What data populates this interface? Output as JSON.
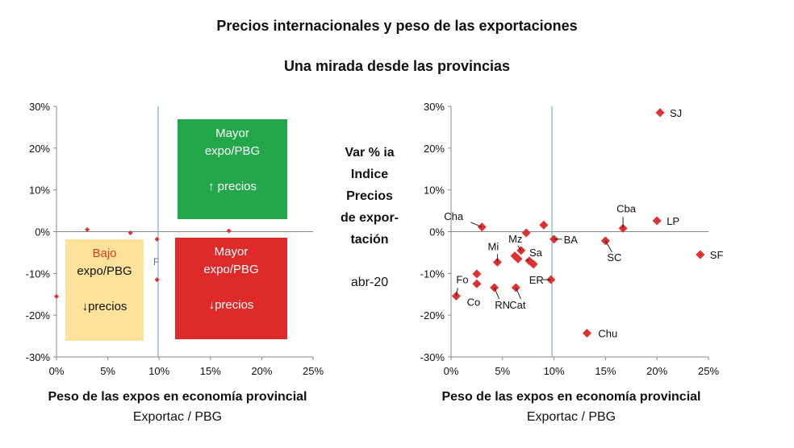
{
  "title": "Precios internacionales y peso de las exportaciones",
  "subtitle": "Una mirada desde las provincias",
  "center_label": {
    "lines": [
      "Var % ia",
      "Indice",
      "Precios",
      "de expor-",
      "tación"
    ],
    "date": "abr-20"
  },
  "colors": {
    "marker": "#e03030",
    "vline": "#5b9bd5",
    "green_box": "#22a84a",
    "red_box": "#e02a2a",
    "yellow_box": "#fde39a",
    "bajo_text": "#e03a1a"
  },
  "chart_data": [
    {
      "type": "scatter",
      "title": "",
      "xlabel": "Peso de las expos en economía provincial",
      "xlabel_sub": "Exportac / PBG",
      "xlim": [
        0,
        25
      ],
      "ylim": [
        -30,
        30
      ],
      "xticks": [
        "0%",
        "5%",
        "10%",
        "15%",
        "20%",
        "25%"
      ],
      "yticks": [
        "30%",
        "20%",
        "10%",
        "0%",
        "-10%",
        "-20%",
        "-30%"
      ],
      "vline_x": 9.9,
      "quadrants": [
        {
          "key": "top_right",
          "lines": [
            "Mayor",
            "expo/PBG",
            "",
            "↑ precios"
          ]
        },
        {
          "key": "bottom_right",
          "lines": [
            "Mayor",
            "expo/PBG",
            "",
            "↓precios"
          ]
        },
        {
          "key": "bottom_left",
          "lines": [
            "Bajo",
            "expo/PBG",
            "",
            "↓precios"
          ]
        }
      ],
      "hidden_label": "F",
      "points": [
        {
          "x": 0.0,
          "y": -15.5
        },
        {
          "x": 3.0,
          "y": 0.5
        },
        {
          "x": 7.2,
          "y": -0.3
        },
        {
          "x": 9.8,
          "y": -11.5
        },
        {
          "x": 16.8,
          "y": 0.2
        },
        {
          "x": 9.8,
          "y": -1.8
        }
      ]
    },
    {
      "type": "scatter",
      "title": "",
      "xlabel": "Peso de las expos en economía provincial",
      "xlabel_sub": "Exportac / PBG",
      "xlim": [
        0,
        25
      ],
      "ylim": [
        -30,
        30
      ],
      "xticks": [
        "0%",
        "5%",
        "10%",
        "15%",
        "20%",
        "25%"
      ],
      "yticks": [
        "30%",
        "20%",
        "10%",
        "0%",
        "-10%",
        "-20%",
        "-30%"
      ],
      "vline_x": 9.8,
      "points": [
        {
          "label": "SJ",
          "x": 20.3,
          "y": 28.5
        },
        {
          "label": "LP",
          "x": 20.0,
          "y": 2.6
        },
        {
          "label": "SF",
          "x": 24.2,
          "y": -5.5
        },
        {
          "label": "Cba",
          "x": 16.7,
          "y": 0.8
        },
        {
          "label": "SC",
          "x": 15.0,
          "y": -2.2
        },
        {
          "label": "Chu",
          "x": 13.2,
          "y": -24.3
        },
        {
          "label": "BA",
          "x": 10.0,
          "y": -1.8
        },
        {
          "label": "",
          "x": 9.0,
          "y": 1.6
        },
        {
          "label": "",
          "x": 7.3,
          "y": -0.3
        },
        {
          "label": "Cha",
          "x": 3.0,
          "y": 1.1
        },
        {
          "label": "Mz",
          "x": 6.8,
          "y": -4.5
        },
        {
          "label": "Mi",
          "x": 4.5,
          "y": -7.3
        },
        {
          "label": "",
          "x": 6.2,
          "y": -5.8
        },
        {
          "label": "",
          "x": 6.5,
          "y": -6.5
        },
        {
          "label": "Sa",
          "x": 7.6,
          "y": -7.0
        },
        {
          "label": "",
          "x": 8.0,
          "y": -7.8
        },
        {
          "label": "ER",
          "x": 9.7,
          "y": -11.5
        },
        {
          "label": "Cat",
          "x": 6.3,
          "y": -13.4
        },
        {
          "label": "RN",
          "x": 4.2,
          "y": -13.4
        },
        {
          "label": "",
          "x": 2.5,
          "y": -10.1
        },
        {
          "label": "Co",
          "x": 2.5,
          "y": -12.5
        },
        {
          "label": "Fo",
          "x": 0.5,
          "y": -15.4
        }
      ]
    }
  ]
}
